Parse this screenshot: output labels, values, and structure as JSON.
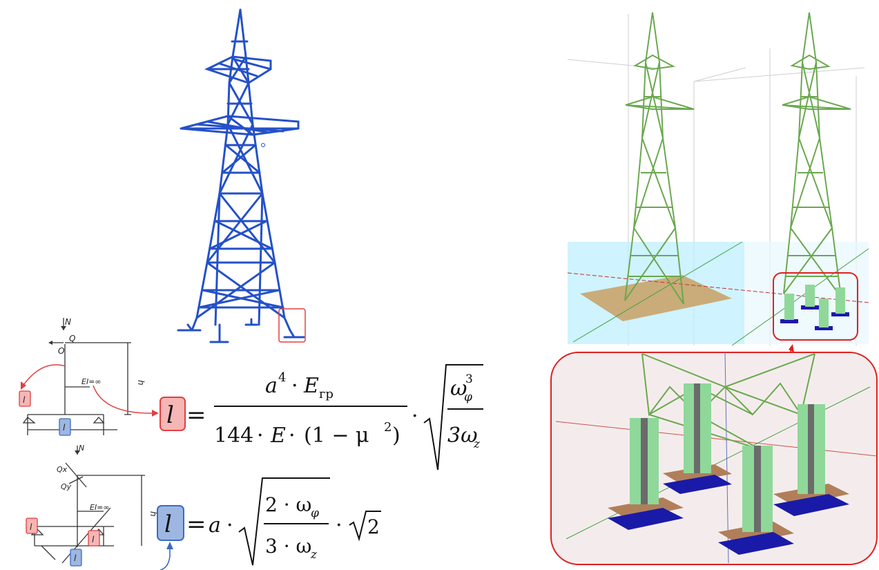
{
  "colors": {
    "tower_blue": "#2451c8",
    "tower_green": "#6aa84f",
    "highlight_red": "#e04040",
    "box_red_fill": "#f6b6b6",
    "box_blue_fill": "#9eb7e2",
    "box_blue_stroke": "#3a6bc4",
    "foundation_tan": "#c8a46c",
    "soil_cyan": "#bfefff",
    "pad_blue": "#1a1aa8",
    "zoom_bg": "#f4ecec"
  },
  "icons": [
    "lattice-tower-blue",
    "lattice-tower-green-slab",
    "lattice-tower-green-piles",
    "pile-foundation"
  ],
  "scheme1": {
    "N": "N",
    "Q": "Q",
    "O": "O",
    "EI": "EI=∞",
    "h": "h",
    "l_red": "l",
    "l_blue": "l"
  },
  "scheme2": {
    "N": "N",
    "Qx": "Qx",
    "Qy": "Qy",
    "EI": "EI=∞",
    "h": "h",
    "l_red_left": "l",
    "l_red_right": "l",
    "l_blue": "l"
  },
  "formula1": {
    "lhs": "l",
    "equals": "=",
    "num_a": "a",
    "num_exp": "4",
    "num_dot": "·",
    "num_E": "E",
    "num_sub": "гр",
    "den_144": "144",
    "den_dot1": "·",
    "den_E": "E",
    "den_dot2": "·",
    "den_paren": "(1 − μ",
    "den_exp": "2",
    "den_close": ")",
    "mid_dot": "·",
    "root_num": "ω",
    "root_num_sub": "φ",
    "root_num_sup": "3",
    "root_den": "3ω",
    "root_den_sub": "z"
  },
  "formula2": {
    "lhs": "l",
    "equals": "=",
    "a": "a",
    "dot1": "·",
    "root_num": "2 · ω",
    "root_num_sub": "φ",
    "root_den": "3 · ω",
    "root_den_sub": "z",
    "dot2": "·",
    "sqrt2": "2"
  }
}
